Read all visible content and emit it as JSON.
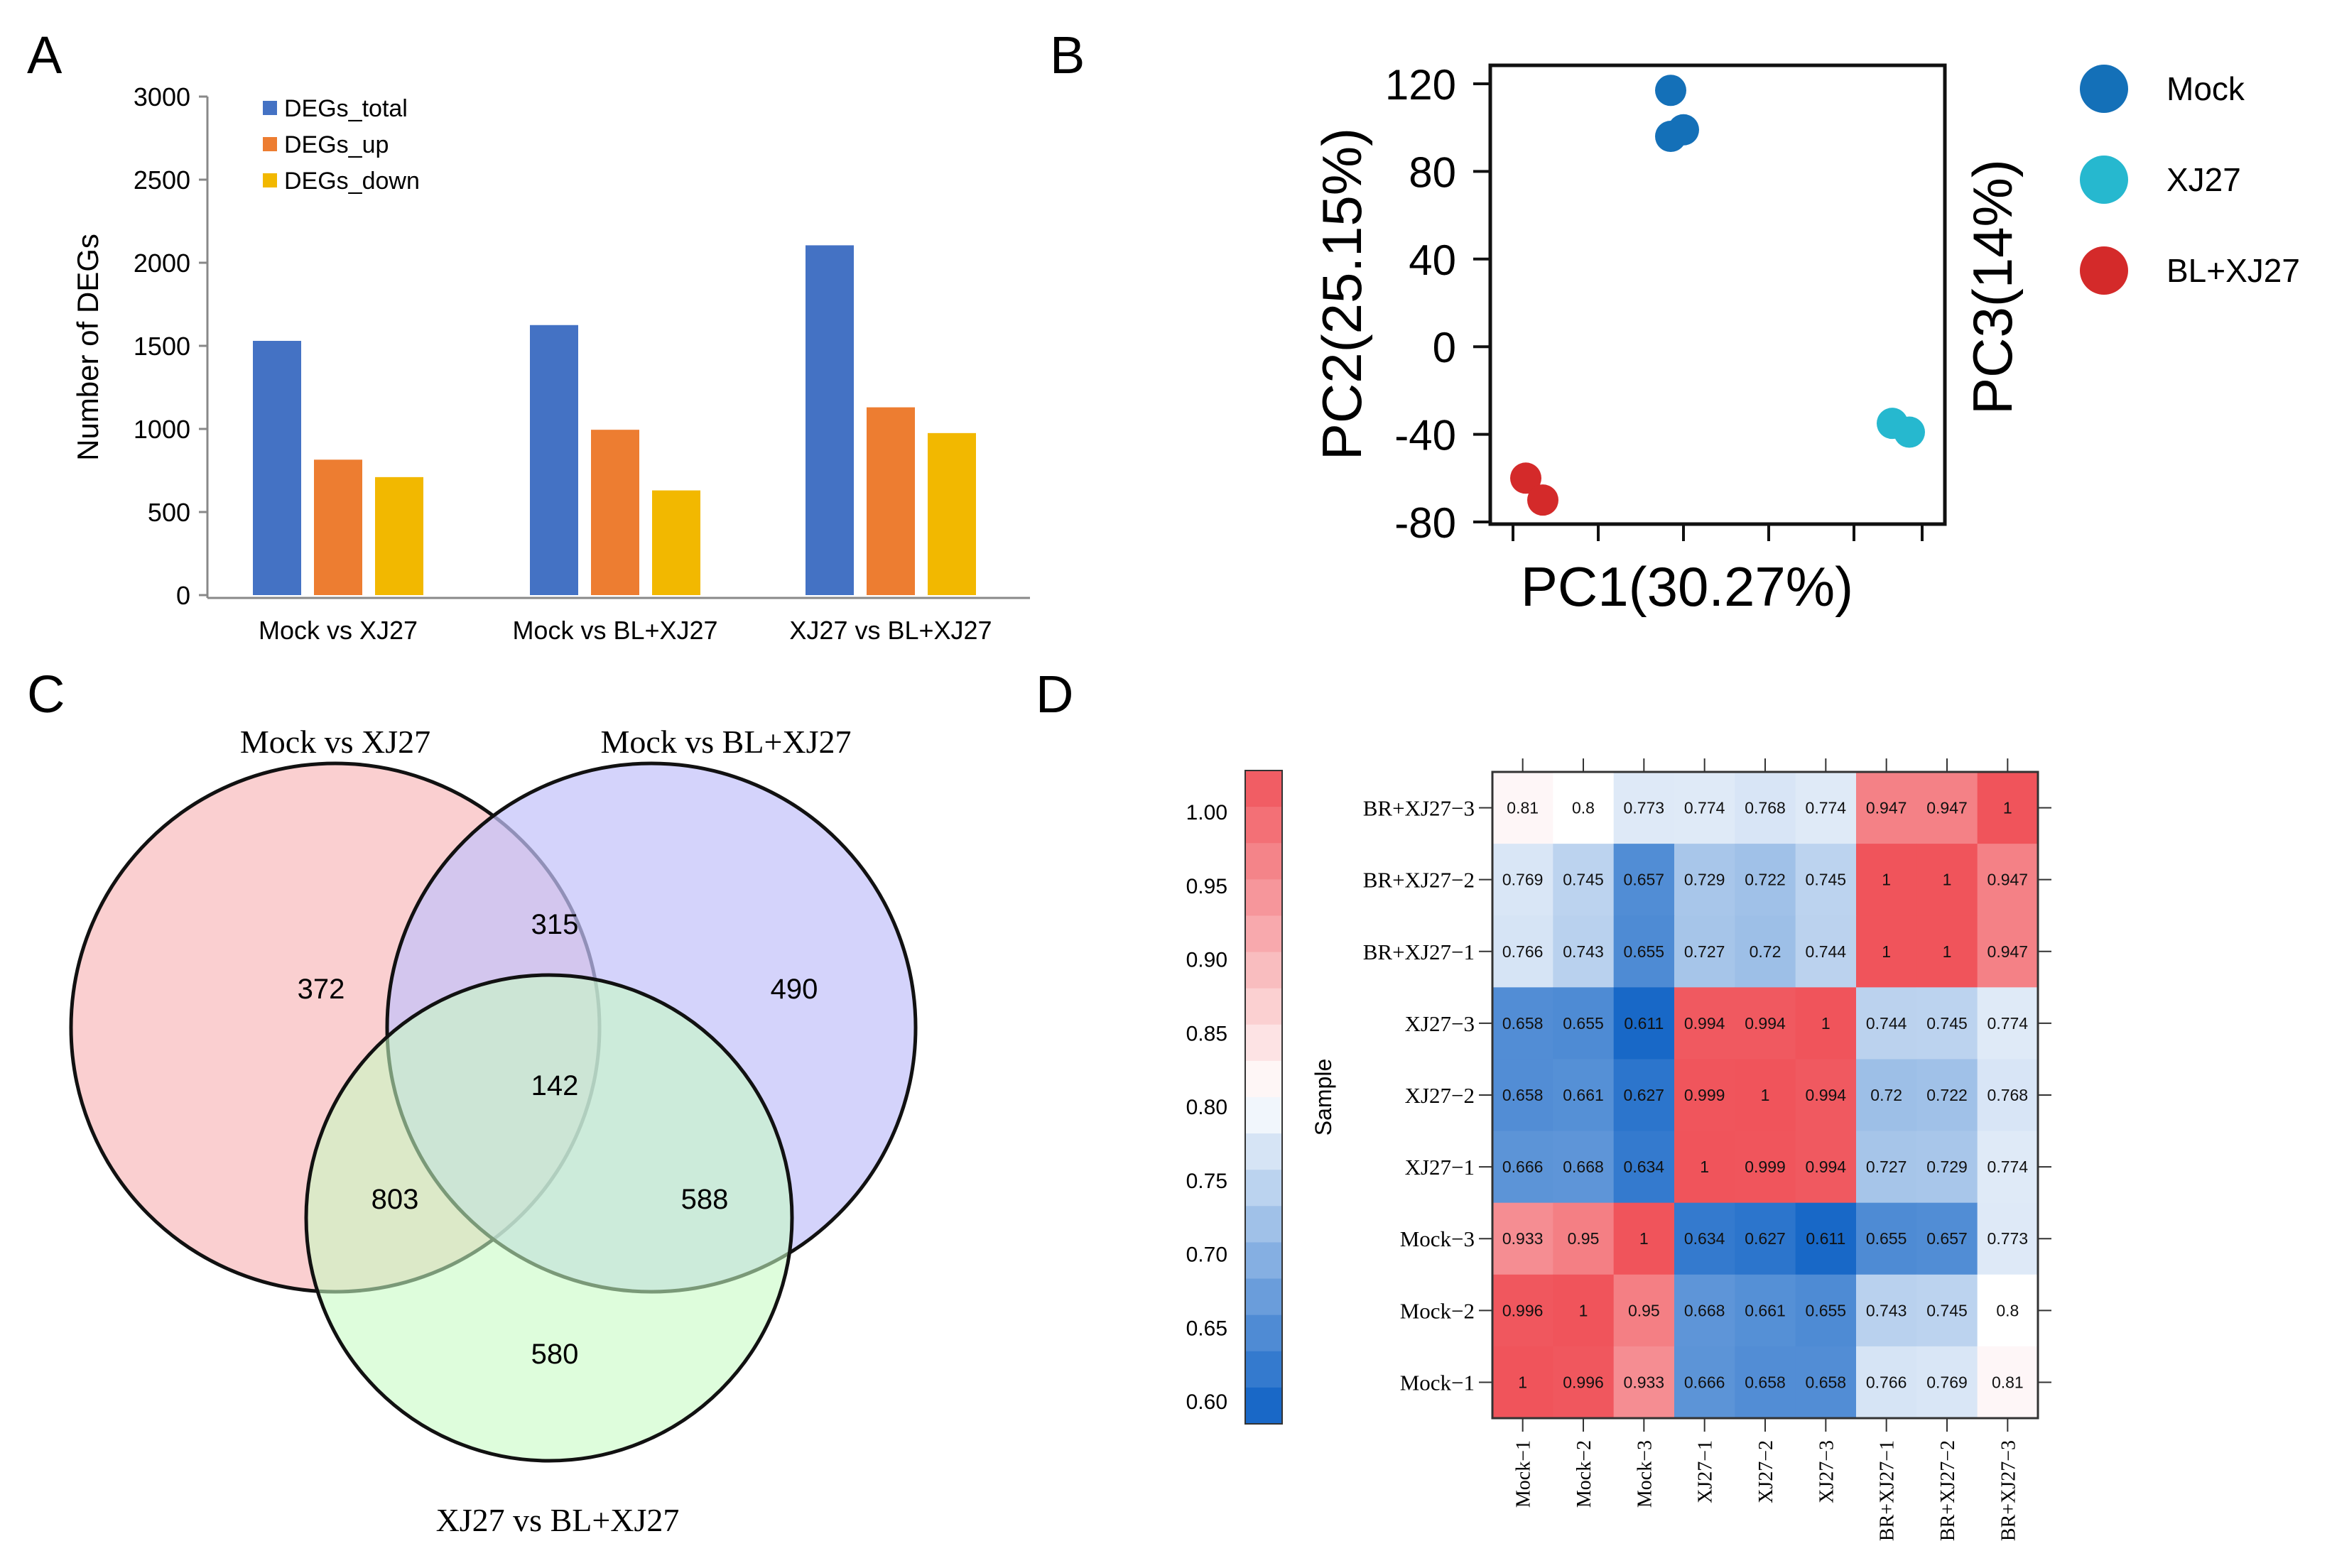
{
  "panel_labels": {
    "a": "A",
    "b": "B",
    "c": "C",
    "d": "D"
  },
  "chart_data": [
    {
      "type": "bar",
      "panel": "A",
      "ylabel": "Number of DEGs",
      "xlabel": "",
      "ylim": [
        0,
        3000
      ],
      "yticks": [
        "0",
        "500",
        "1000",
        "1500",
        "2000",
        "2500",
        "3000"
      ],
      "categories": [
        "Mock vs XJ27",
        "Mock vs BL+XJ27",
        "XJ27 vs BL+XJ27"
      ],
      "series": [
        {
          "name": "DEGs_total",
          "color": "#4472C4",
          "values": [
            1530,
            1625,
            2105
          ]
        },
        {
          "name": "DEGs_up",
          "color": "#ED7D31",
          "values": [
            815,
            995,
            1130
          ]
        },
        {
          "name": "DEGs_down",
          "color": "#F2B800",
          "values": [
            710,
            630,
            975
          ]
        }
      ],
      "legend_position": "top-left"
    },
    {
      "type": "scatter",
      "panel": "B",
      "xlabel": "PC1(30.27%)",
      "ylabel": "PC2(25.15%)",
      "zlabel": "PC3(14%)",
      "ylim": [
        -80,
        125
      ],
      "yticks": [
        "120",
        "80",
        "40",
        "0",
        "-40",
        "-80"
      ],
      "series": [
        {
          "name": "Mock",
          "color": "#1470B8",
          "points": [
            [
              0.39,
              117
            ],
            [
              0.39,
              96
            ],
            [
              0.42,
              99
            ]
          ]
        },
        {
          "name": "XJ27",
          "color": "#26B8CF",
          "points": [
            [
              0.91,
              -35
            ],
            [
              0.95,
              -39
            ]
          ]
        },
        {
          "name": "BL+XJ27",
          "color": "#D42A2A",
          "points": [
            [
              0.05,
              -60
            ],
            [
              0.09,
              -70
            ]
          ]
        }
      ],
      "legend_position": "right"
    },
    {
      "type": "venn",
      "panel": "C",
      "sets": [
        "Mock vs XJ27",
        "Mock vs BL+XJ27",
        "XJ27 vs BL+XJ27"
      ],
      "regions": {
        "only_a": "372",
        "only_b": "490",
        "only_c": "580",
        "a_b": "315",
        "a_c": "803",
        "b_c": "588",
        "a_b_c": "142"
      },
      "colors": [
        "#F9C5C6",
        "#C9C6F9",
        "#CDFBC8"
      ]
    },
    {
      "type": "heatmap",
      "panel": "D",
      "rows": [
        "BR+XJ27−3",
        "BR+XJ27−2",
        "BR+XJ27−1",
        "XJ27−3",
        "XJ27−2",
        "XJ27−1",
        "Mock−3",
        "Mock−2",
        "Mock−1"
      ],
      "columns": [
        "Mock−1",
        "Mock−2",
        "Mock−3",
        "XJ27−1",
        "XJ27−2",
        "XJ27−3",
        "BR+XJ27−1",
        "BR+XJ27−2",
        "BR+XJ27−3"
      ],
      "values": [
        [
          "0.81",
          "0.8",
          "0.773",
          "0.774",
          "0.768",
          "0.774",
          "0.947",
          "0.947",
          "1"
        ],
        [
          "0.769",
          "0.745",
          "0.657",
          "0.729",
          "0.722",
          "0.745",
          "1",
          "1",
          "0.947"
        ],
        [
          "0.766",
          "0.743",
          "0.655",
          "0.727",
          "0.72",
          "0.744",
          "1",
          "1",
          "0.947"
        ],
        [
          "0.658",
          "0.655",
          "0.611",
          "0.994",
          "0.994",
          "1",
          "0.744",
          "0.745",
          "0.774"
        ],
        [
          "0.658",
          "0.661",
          "0.627",
          "0.999",
          "1",
          "0.994",
          "0.72",
          "0.722",
          "0.768"
        ],
        [
          "0.666",
          "0.668",
          "0.634",
          "1",
          "0.999",
          "0.994",
          "0.727",
          "0.729",
          "0.774"
        ],
        [
          "0.933",
          "0.95",
          "1",
          "0.634",
          "0.627",
          "0.611",
          "0.655",
          "0.657",
          "0.773"
        ],
        [
          "0.996",
          "1",
          "0.95",
          "0.668",
          "0.661",
          "0.655",
          "0.743",
          "0.745",
          "0.8"
        ],
        [
          "1",
          "0.996",
          "0.933",
          "0.666",
          "0.658",
          "0.658",
          "0.766",
          "0.769",
          "0.81"
        ]
      ],
      "colorbar_ticks": [
        "1.00",
        "0.95",
        "0.90",
        "0.85",
        "0.80",
        "0.75",
        "0.70",
        "0.65",
        "0.60"
      ],
      "colorbar_label": "Sample",
      "color_low": "#0B5FC4",
      "color_mid": "#FFFFFF",
      "color_high": "#F0545B",
      "range": [
        0.6,
        1.0
      ]
    }
  ]
}
